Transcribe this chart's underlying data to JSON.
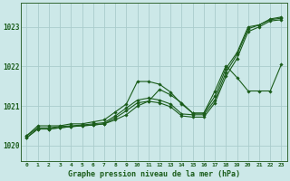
{
  "title": "Graphe pression niveau de la mer (hPa)",
  "xlim": [
    -0.5,
    23.5
  ],
  "ylim": [
    1019.6,
    1023.6
  ],
  "yticks": [
    1020,
    1021,
    1022,
    1023
  ],
  "xticks": [
    0,
    1,
    2,
    3,
    4,
    5,
    6,
    7,
    8,
    9,
    10,
    11,
    12,
    13,
    14,
    15,
    16,
    17,
    18,
    19,
    20,
    21,
    22,
    23
  ],
  "bg_color": "#cce8e8",
  "grid_color": "#aacccc",
  "line_color": "#1a5c1a",
  "spine_color": "#336633",
  "series": [
    [
      1020.25,
      1020.5,
      1020.5,
      1020.5,
      1020.55,
      1020.55,
      1020.6,
      1020.65,
      1020.85,
      1021.05,
      1021.62,
      1021.62,
      1021.55,
      1021.35,
      1021.05,
      1020.82,
      1020.82,
      1021.25,
      1021.95,
      1022.35,
      1023.0,
      1023.05,
      1023.2,
      1023.25
    ],
    [
      1020.25,
      1020.45,
      1020.45,
      1020.48,
      1020.5,
      1020.52,
      1020.55,
      1020.58,
      1020.75,
      1020.95,
      1021.15,
      1021.2,
      1021.15,
      1021.05,
      1020.8,
      1020.78,
      1020.78,
      1021.15,
      1021.85,
      1022.3,
      1022.95,
      1023.05,
      1023.18,
      1023.22
    ],
    [
      1020.2,
      1020.42,
      1020.42,
      1020.45,
      1020.48,
      1020.5,
      1020.52,
      1020.55,
      1020.7,
      1020.88,
      1021.08,
      1021.12,
      1021.08,
      1020.98,
      1020.75,
      1020.72,
      1020.72,
      1021.08,
      1021.75,
      1022.2,
      1022.88,
      1023.0,
      1023.15,
      1023.18
    ],
    [
      1020.2,
      1020.42,
      1020.42,
      1020.45,
      1020.48,
      1020.5,
      1020.52,
      1020.55,
      1020.65,
      1020.78,
      1021.0,
      1021.12,
      1021.42,
      1021.28,
      1021.08,
      1020.82,
      1020.82,
      1021.38,
      1022.02,
      1021.72,
      1021.38,
      1021.38,
      1021.38,
      1022.05
    ]
  ]
}
